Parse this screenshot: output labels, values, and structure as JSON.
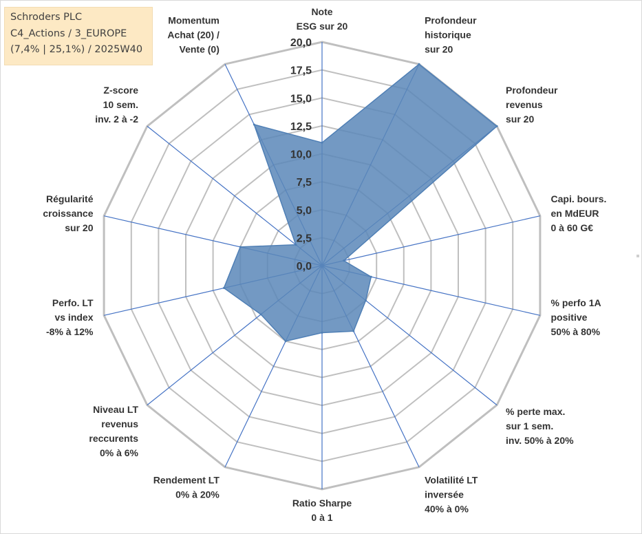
{
  "info_box": {
    "line1": "Schroders PLC",
    "line2": "C4_Actions / 3_EUROPE",
    "line3": "(7,4% | 25,1%) / 2025W40"
  },
  "colors": {
    "grid": "#bfbfbf",
    "spoke": "#4472c4",
    "fill": "#5b87b8",
    "stroke": "#4f7fb5",
    "info_bg": "#fde9c4"
  },
  "chart_data": {
    "type": "radar",
    "title": "",
    "rmax": 20,
    "grid": true,
    "ticks": [
      "0,0",
      "2,5",
      "5,0",
      "7,5",
      "10,0",
      "12,5",
      "15,0",
      "17,5",
      "20,0"
    ],
    "categories": [
      [
        "Note",
        "ESG sur 20"
      ],
      [
        "Profondeur",
        "historique",
        "sur 20"
      ],
      [
        "Profondeur",
        "revenus",
        "sur 20"
      ],
      [
        "Capi. bours.",
        "en MdEUR",
        "0 à 60 G€"
      ],
      [
        "% perfo 1A",
        "positive",
        "50% à 80%"
      ],
      [
        "% perte max.",
        "sur 1 sem.",
        "inv. 50% à 20%"
      ],
      [
        "Volatilité LT",
        "inversée",
        "40% à 0%"
      ],
      [
        "Ratio Sharpe",
        "0 à 1"
      ],
      [
        "Rendement LT",
        "0% à 20%"
      ],
      [
        "Niveau LT",
        "revenus",
        "reccurents",
        "0% à 6%"
      ],
      [
        "Perfo. LT",
        "vs index",
        "-8% à 12%"
      ],
      [
        "Régularité",
        "croissance",
        "sur 20"
      ],
      [
        "Z-score",
        "10 sem.",
        "inv. 2 à -2"
      ],
      [
        "Momentum",
        "Achat (20) /",
        "Vente (0)"
      ]
    ],
    "series": [
      {
        "values": [
          11,
          20,
          20,
          2,
          4.5,
          5,
          6.5,
          6,
          7.5,
          7,
          9,
          7.5,
          3,
          14
        ]
      }
    ]
  }
}
